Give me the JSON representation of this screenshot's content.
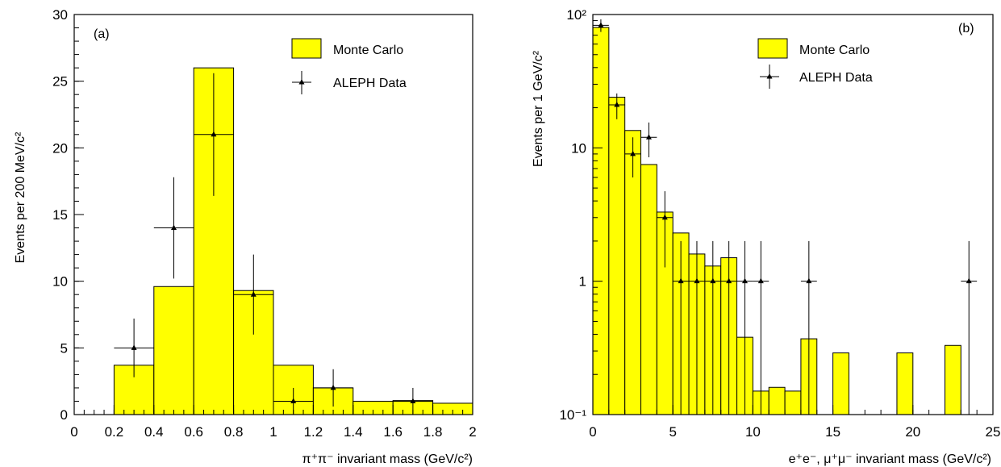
{
  "colors": {
    "mc_fill": "#ffff00",
    "line": "#000000",
    "background": "#ffffff"
  },
  "chart_data": [
    {
      "type": "bar",
      "panel_label": "(a)",
      "xlabel": "π⁺π⁻ invariant mass (GeV/c²)",
      "ylabel": "Events per 200 MeV/c²",
      "xlim": [
        0,
        2
      ],
      "ylim": [
        0,
        30
      ],
      "log_y": false,
      "xtick_labels": [
        "0",
        "0.2",
        "0.4",
        "0.6",
        "0.8",
        "1",
        "1.2",
        "1.4",
        "1.6",
        "1.8",
        "2"
      ],
      "ytick_labels": [
        "0",
        "5",
        "10",
        "15",
        "20",
        "25",
        "30"
      ],
      "legend": {
        "placement": "top-right",
        "mc_label": "Monte Carlo",
        "data_label": "ALEPH Data"
      },
      "series": [
        {
          "name": "Monte Carlo",
          "kind": "histogram",
          "bin_edges": [
            0.2,
            0.4,
            0.6,
            0.8,
            1.0,
            1.2,
            1.4,
            1.6,
            1.8,
            2.0
          ],
          "values": [
            3.7,
            9.6,
            26.0,
            9.3,
            3.7,
            2.0,
            1.0,
            1.05,
            0.85
          ]
        },
        {
          "name": "ALEPH Data",
          "kind": "points",
          "points": [
            {
              "x": 0.3,
              "y": 5,
              "xerr": 0.1,
              "ylo": 2.8,
              "yhi": 7.2
            },
            {
              "x": 0.5,
              "y": 14,
              "xerr": 0.1,
              "ylo": 10.2,
              "yhi": 17.8
            },
            {
              "x": 0.7,
              "y": 21,
              "xerr": 0.1,
              "ylo": 16.4,
              "yhi": 25.6
            },
            {
              "x": 0.9,
              "y": 9,
              "xerr": 0.1,
              "ylo": 6.0,
              "yhi": 12.0
            },
            {
              "x": 1.1,
              "y": 1,
              "xerr": 0.1,
              "ylo": 0,
              "yhi": 2.0
            },
            {
              "x": 1.3,
              "y": 2,
              "xerr": 0.1,
              "ylo": 0.6,
              "yhi": 3.4
            },
            {
              "x": 1.7,
              "y": 1,
              "xerr": 0.1,
              "ylo": 0,
              "yhi": 2.0
            }
          ]
        }
      ]
    },
    {
      "type": "bar",
      "panel_label": "(b)",
      "xlabel": "e⁺e⁻, μ⁺μ⁻ invariant mass (GeV/c²)",
      "ylabel": "Events per 1 GeV/c²",
      "xlim": [
        0,
        25
      ],
      "ylim": [
        0.1,
        100
      ],
      "log_y": true,
      "xtick_labels": [
        "0",
        "5",
        "10",
        "15",
        "20",
        "25"
      ],
      "ytick_labels": [
        "10⁻¹",
        "1",
        "10",
        "10²"
      ],
      "legend": {
        "placement": "top-right",
        "mc_label": "Monte Carlo",
        "data_label": "ALEPH Data"
      },
      "series": [
        {
          "name": "Monte Carlo",
          "kind": "histogram",
          "bin_edges": [
            0,
            1,
            2,
            3,
            4,
            5,
            6,
            7,
            8,
            9,
            10,
            11,
            12,
            13,
            14,
            15,
            16,
            17,
            18,
            19,
            20,
            21,
            22,
            23,
            24,
            25
          ],
          "values": [
            80,
            24,
            13.5,
            7.5,
            3.3,
            2.3,
            1.6,
            1.3,
            1.5,
            0.38,
            0.15,
            0.16,
            0.15,
            0.37,
            0,
            0.29,
            0,
            0,
            0,
            0.29,
            0,
            0,
            0.33,
            0,
            0
          ]
        },
        {
          "name": "ALEPH Data",
          "kind": "points",
          "points": [
            {
              "x": 0.5,
              "y": 83,
              "xerr": 0.5,
              "ylo": 74,
              "yhi": 92
            },
            {
              "x": 1.5,
              "y": 21,
              "xerr": 0.5,
              "ylo": 16.4,
              "yhi": 25.6
            },
            {
              "x": 2.5,
              "y": 9,
              "xerr": 0.5,
              "ylo": 6.0,
              "yhi": 12.0
            },
            {
              "x": 3.5,
              "y": 12,
              "xerr": 0.5,
              "ylo": 8.5,
              "yhi": 15.5
            },
            {
              "x": 4.5,
              "y": 3,
              "xerr": 0.5,
              "ylo": 1.27,
              "yhi": 4.73
            },
            {
              "x": 5.5,
              "y": 1,
              "xerr": 0.5,
              "ylo": 0,
              "yhi": 2
            },
            {
              "x": 6.5,
              "y": 1,
              "xerr": 0.5,
              "ylo": 0,
              "yhi": 2
            },
            {
              "x": 7.5,
              "y": 1,
              "xerr": 0.5,
              "ylo": 0,
              "yhi": 2
            },
            {
              "x": 8.5,
              "y": 1,
              "xerr": 0.5,
              "ylo": 0,
              "yhi": 2
            },
            {
              "x": 9.5,
              "y": 1,
              "xerr": 0.5,
              "ylo": 0,
              "yhi": 2
            },
            {
              "x": 10.5,
              "y": 1,
              "xerr": 0.5,
              "ylo": 0,
              "yhi": 2
            },
            {
              "x": 13.5,
              "y": 1,
              "xerr": 0.5,
              "ylo": 0,
              "yhi": 2
            },
            {
              "x": 23.5,
              "y": 1,
              "xerr": 0.5,
              "ylo": 0,
              "yhi": 2
            }
          ]
        }
      ]
    }
  ]
}
